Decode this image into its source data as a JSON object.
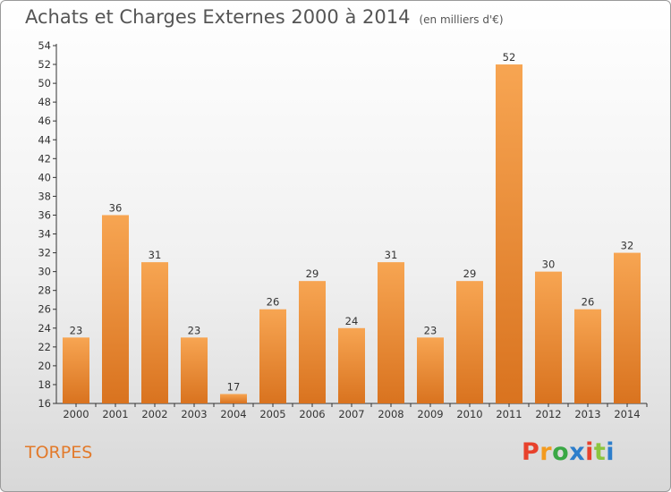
{
  "header": {
    "title": "Achats et Charges Externes 2000 à 2014",
    "unit": "(en milliers d'€)"
  },
  "footer": {
    "commune": "TORPES",
    "logo_text": "Proxiti",
    "logo_colors": [
      "#e8412c",
      "#f39b1f",
      "#3aa845",
      "#2d7ecb",
      "#e8412c",
      "#8bc53f",
      "#2d7ecb"
    ]
  },
  "chart_data": {
    "type": "bar",
    "categories": [
      "2000",
      "2001",
      "2002",
      "2003",
      "2004",
      "2005",
      "2006",
      "2007",
      "2008",
      "2009",
      "2010",
      "2011",
      "2012",
      "2013",
      "2014"
    ],
    "values": [
      23,
      36,
      31,
      23,
      17,
      26,
      29,
      24,
      31,
      23,
      29,
      52,
      30,
      26,
      32
    ],
    "title": "Achats et Charges Externes 2000 à 2014",
    "subtitle": "(en milliers d'€)",
    "xlabel": "",
    "ylabel": "",
    "ylim": [
      16,
      54
    ],
    "ytick_step": 2,
    "grid": false,
    "bar_color_top": "#f7a552",
    "bar_color_bottom": "#d9731f"
  }
}
